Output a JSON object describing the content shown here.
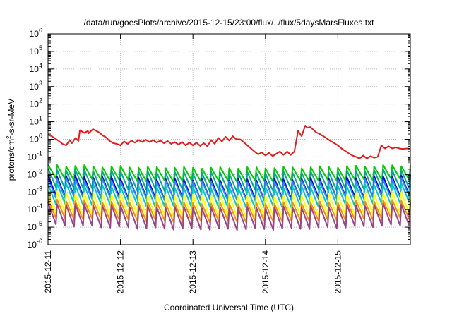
{
  "chart_data": {
    "type": "line",
    "title": "/data/run/goesPlots/archive/2015-12-15/23:00/flux/../flux/5daysMarsFluxes.txt",
    "xlabel": "Coordinated Universal Time (UTC)",
    "ylabel": "protons/cm²-s-sr-MeV",
    "ylabel_parts": {
      "pre": "protons/cm",
      "sup": "2",
      "post": "-s-sr-MeV"
    },
    "yscale": "log",
    "ylim_exponents": [
      -6,
      6
    ],
    "y_tick_exponents": [
      -6,
      -5,
      -4,
      -3,
      -2,
      -1,
      0,
      1,
      2,
      3,
      4,
      5,
      6
    ],
    "y_tick_base": "10",
    "xlim": [
      "2015-12-11",
      "2015-12-16"
    ],
    "x_ticks": [
      "2015-12-11",
      "2015-12-12",
      "2015-12-13",
      "2015-12-14",
      "2015-12-15"
    ],
    "grid": true,
    "legend": "none",
    "series": [
      {
        "color": "#e41a1c",
        "x": [
          0,
          0.05,
          0.1,
          0.15,
          0.2,
          0.25,
          0.3,
          0.33,
          0.38,
          0.42,
          0.44,
          0.5,
          0.55,
          0.56,
          0.62,
          0.66,
          0.69,
          0.72,
          0.75,
          0.8,
          0.85,
          0.9,
          0.95,
          1.0,
          1.05,
          1.1,
          1.15,
          1.2,
          1.25,
          1.3,
          1.35,
          1.4,
          1.45,
          1.5,
          1.55,
          1.6,
          1.65,
          1.7,
          1.75,
          1.8,
          1.85,
          1.9,
          1.95,
          2.0,
          2.05,
          2.1,
          2.15,
          2.2,
          2.25,
          2.3,
          2.35,
          2.4,
          2.45,
          2.5,
          2.55,
          2.6,
          2.65,
          2.7,
          2.75,
          2.8,
          2.85,
          2.9,
          2.95,
          3.0,
          3.05,
          3.1,
          3.15,
          3.2,
          3.25,
          3.3,
          3.35,
          3.4,
          3.45,
          3.5,
          3.55,
          3.58,
          3.62,
          3.66,
          3.7,
          3.75,
          3.8,
          3.85,
          3.9,
          3.95,
          4.0,
          4.05,
          4.1,
          4.15,
          4.2,
          4.25,
          4.3,
          4.35,
          4.4,
          4.45,
          4.5,
          4.55,
          4.6,
          4.65,
          4.7,
          4.75,
          4.8,
          4.85,
          4.9,
          4.95,
          5.0
        ],
        "y": [
          1.8,
          1.5,
          1.1,
          0.8,
          0.55,
          0.45,
          0.9,
          0.6,
          1.2,
          0.8,
          3.3,
          2.3,
          3.0,
          2.2,
          3.8,
          3.1,
          2.7,
          2.2,
          1.7,
          1.3,
          0.8,
          0.6,
          0.55,
          0.45,
          0.75,
          0.55,
          0.85,
          0.65,
          0.9,
          0.7,
          0.95,
          0.7,
          0.9,
          0.65,
          0.85,
          0.6,
          0.8,
          0.55,
          0.7,
          0.5,
          0.7,
          0.45,
          0.65,
          0.45,
          0.65,
          0.42,
          0.6,
          0.4,
          0.9,
          0.55,
          1.2,
          0.75,
          1.4,
          0.85,
          1.5,
          1.0,
          1.0,
          0.7,
          0.45,
          0.3,
          0.2,
          0.14,
          0.18,
          0.12,
          0.17,
          0.11,
          0.15,
          0.2,
          0.13,
          0.2,
          0.13,
          0.2,
          3.0,
          1.5,
          6.0,
          4.5,
          5.0,
          3.5,
          2.5,
          2.0,
          1.5,
          1.1,
          0.8,
          0.6,
          0.45,
          0.3,
          0.22,
          0.16,
          0.12,
          0.1,
          0.08,
          0.12,
          0.08,
          0.11,
          0.09,
          0.1,
          0.45,
          0.3,
          0.4,
          0.3,
          0.35,
          0.3,
          0.28,
          0.3,
          0.28
        ]
      },
      {
        "color": "#00cc00",
        "base": 0.012,
        "amp": 0.9,
        "trend": -0.15
      },
      {
        "color": "#00aa88",
        "base": 0.005,
        "amp": 1.2,
        "trend": -0.2
      },
      {
        "color": "#0000dd",
        "base": 0.002,
        "amp": 1.3,
        "trend": -0.25
      },
      {
        "color": "#3388ee",
        "base": 0.0015,
        "amp": 1.2,
        "trend": -0.2
      },
      {
        "color": "#00c8c8",
        "base": 0.0007,
        "amp": 1.3,
        "trend": -0.25
      },
      {
        "color": "#ffff00",
        "base": 0.0002,
        "amp": 1.4,
        "trend": -0.2
      },
      {
        "color": "#ff8c00",
        "base": 9e-05,
        "amp": 1.2,
        "trend": -0.2
      },
      {
        "color": "#994488",
        "base": 4.5e-05,
        "amp": 1.4,
        "trend": -0.25
      }
    ]
  }
}
